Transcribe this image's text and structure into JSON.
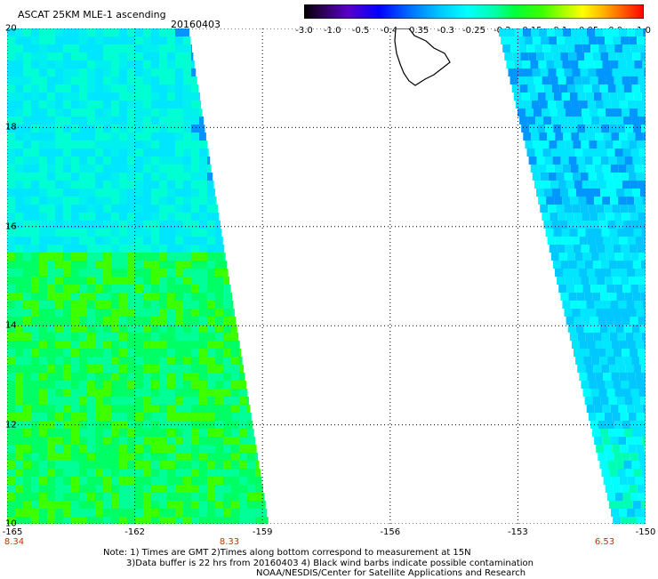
{
  "header": {
    "title": "ASCAT 25KM MLE-1 ascending",
    "date": "20160403"
  },
  "colorbar": {
    "labels": [
      "-3.0",
      "-1.0",
      "-0.5",
      "-0.4",
      "-0.35",
      "-0.3",
      "-0.25",
      "-0.2",
      "-0.15",
      "-0.1",
      "-0.05",
      "0.0",
      "1.0"
    ],
    "colors": [
      "#000000",
      "#3c0078",
      "#5a00d2",
      "#0000ff",
      "#0064ff",
      "#00b4ff",
      "#00ffff",
      "#00ff78",
      "#00ff00",
      "#78ff00",
      "#ffff00",
      "#ffa000",
      "#ff5000",
      "#ff0000"
    ]
  },
  "axes": {
    "y_labels": [
      "20",
      "18",
      "16",
      "14",
      "12",
      "10"
    ],
    "x_labels": [
      "-165",
      "-162",
      "-159",
      "-156",
      "-153",
      "-150"
    ],
    "time_labels": [
      "8.34",
      "8.33",
      "6.53"
    ]
  },
  "notes": {
    "line1": "Note: 1) Times are GMT 2)Times along bottom correspond to measurement at 15N",
    "line2": "3)Data buffer is 22 hrs from 20160403 4) Black wind barbs indicate possible contamination",
    "line3": "NOAA/NESDIS/Center for Satellite Applications and Research"
  },
  "map_data": {
    "lat_range": [
      10,
      20
    ],
    "lon_range": [
      -165,
      -150
    ],
    "grid": true,
    "swaths": [
      {
        "name": "west",
        "dominant_color": "#00ffaa"
      },
      {
        "name": "east",
        "dominant_color": "#00e6ff"
      }
    ],
    "land": "Hawaii (Big Island)"
  }
}
